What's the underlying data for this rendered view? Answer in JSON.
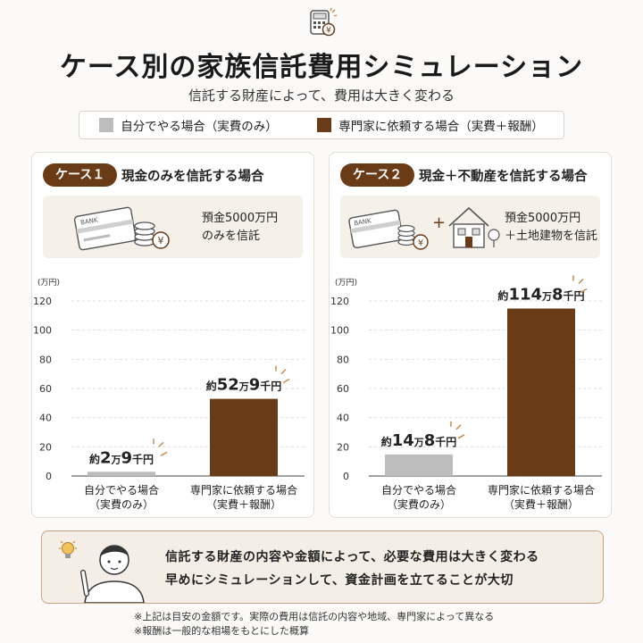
{
  "title": "ケース別の家族信託費用シミュレーション",
  "subtitle": "信託する財産によって、費用は大きく変わる",
  "legend": {
    "self": "自分でやる場合（実費のみ）",
    "expert": "専門家に依頼する場合（実費＋報酬）"
  },
  "colors": {
    "self": "#bdbdbd",
    "expert": "#6a3b17",
    "accent": "#6a3b17",
    "spark": "#c98a4b"
  },
  "icons": {
    "header": "calculator-yen-icon",
    "card": "bank-card-icon",
    "coins": "yen-coins-icon",
    "house": "house-icon",
    "person": "person-pointing-icon",
    "bulb": "lightbulb-icon"
  },
  "cases": [
    {
      "tag": "ケース１",
      "title": "現金のみを信託する場合",
      "info_line1": "預金5000万円",
      "info_line2": "のみを信託",
      "card_label": "BANK"
    },
    {
      "tag": "ケース２",
      "title": "現金＋不動産を信託する場合",
      "info_line1": "預金5000万円",
      "info_line2": "＋土地建物を信託",
      "card_label": "BANK",
      "plus": "+"
    }
  ],
  "chart_data": [
    {
      "type": "bar",
      "unit_label": "(万円)",
      "categories": [
        [
          "自分でやる場合",
          "（実費のみ）"
        ],
        [
          "専門家に依頼する場合",
          "（実費＋報酬）"
        ]
      ],
      "values": [
        2.9,
        52.9
      ],
      "value_labels": [
        {
          "pre": "約",
          "big1": "2",
          "small1": "万",
          "big2": "9",
          "small2": "千円"
        },
        {
          "pre": "約",
          "big1": "52",
          "small1": "万",
          "big2": "9",
          "small2": "千円"
        }
      ],
      "yticks": [
        0,
        20,
        40,
        60,
        80,
        100,
        120
      ],
      "ylim": [
        0,
        120
      ],
      "grid": true
    },
    {
      "type": "bar",
      "unit_label": "(万円)",
      "categories": [
        [
          "自分でやる場合",
          "（実費のみ）"
        ],
        [
          "専門家に依頼する場合",
          "（実費＋報酬）"
        ]
      ],
      "values": [
        14.8,
        114.8
      ],
      "value_labels": [
        {
          "pre": "約",
          "big1": "14",
          "small1": "万",
          "big2": "8",
          "small2": "千円"
        },
        {
          "pre": "約",
          "big1": "114",
          "small1": "万",
          "big2": "8",
          "small2": "千円"
        }
      ],
      "yticks": [
        0,
        20,
        40,
        60,
        80,
        100,
        120
      ],
      "ylim": [
        0,
        120
      ],
      "grid": true
    }
  ],
  "note": {
    "line1": "信託する財産の内容や金額によって、必要な費用は大きく変わる",
    "line2": "早めにシミュレーションして、資金計画を立てることが大切"
  },
  "footnotes": [
    "※上記は目安の金額です。実際の費用は信託の内容や地域、専門家によって異なる",
    "※報酬は一般的な相場をもとにした概算"
  ]
}
